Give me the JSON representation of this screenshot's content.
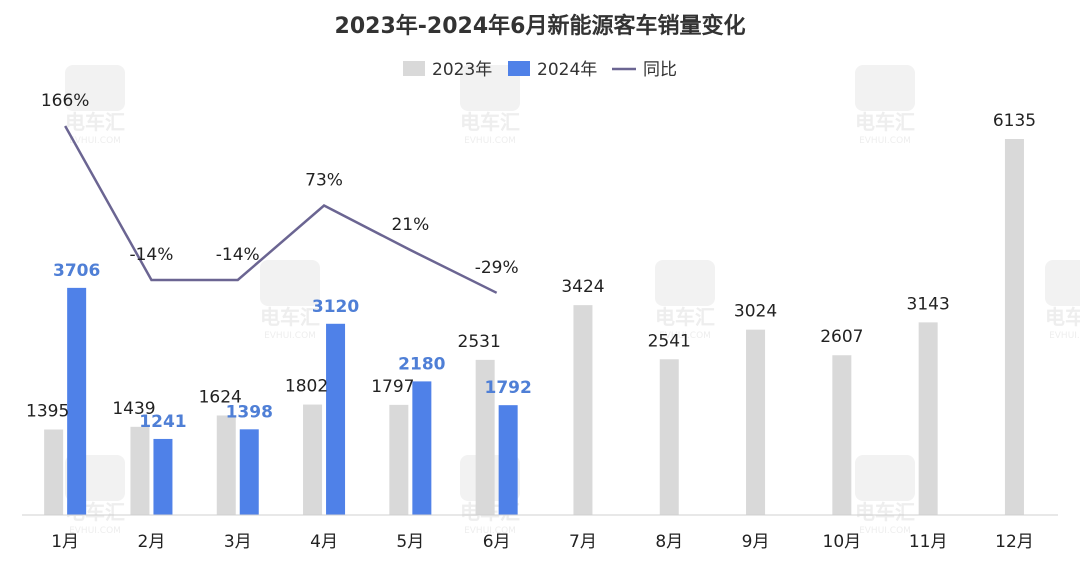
{
  "chart_data": {
    "type": "bar",
    "title": "2023年-2024年6月新能源客车销量变化",
    "categories": [
      "1月",
      "2月",
      "3月",
      "4月",
      "5月",
      "6月",
      "7月",
      "8月",
      "9月",
      "10月",
      "11月",
      "12月"
    ],
    "series": [
      {
        "name": "2023年",
        "kind": "bar",
        "color": "#d9d9d9",
        "values": [
          1395,
          1439,
          1624,
          1802,
          1797,
          2531,
          3424,
          2541,
          3024,
          2607,
          3143,
          6135
        ]
      },
      {
        "name": "2024年",
        "kind": "bar",
        "color": "#4f81e8",
        "values": [
          3706,
          1241,
          1398,
          3120,
          2180,
          1792,
          null,
          null,
          null,
          null,
          null,
          null
        ]
      },
      {
        "name": "同比",
        "kind": "line",
        "color": "#6b6592",
        "values": [
          166,
          -14,
          -14,
          73,
          21,
          -29,
          null,
          null,
          null,
          null,
          null,
          null
        ],
        "labels": [
          "166%",
          "-14%",
          "-14%",
          "73%",
          "21%",
          "-29%"
        ]
      }
    ],
    "ylim": [
      0,
      7000
    ],
    "legend_position": "top-center",
    "grid": false
  },
  "watermark": "EVHUI.COM"
}
